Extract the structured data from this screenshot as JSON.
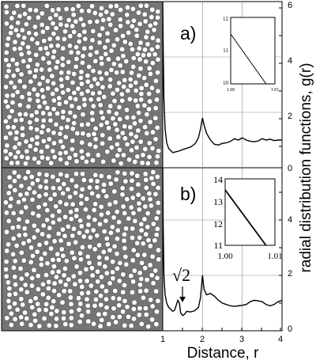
{
  "chart_data": [
    {
      "type": "line",
      "panel": "a)",
      "xlim": [
        1,
        4
      ],
      "ylim": [
        0,
        6
      ],
      "x_ticks": [
        "1",
        "2",
        "3",
        "4"
      ],
      "y_ticks": [
        "0",
        "2",
        "4",
        "6"
      ],
      "series": [
        {
          "x": [
            1.0,
            1.01,
            1.03,
            1.06,
            1.1,
            1.15,
            1.25,
            1.4,
            1.55,
            1.7,
            1.8,
            1.85,
            1.9,
            1.95,
            2.0,
            2.04,
            2.1,
            2.2,
            2.3,
            2.4,
            2.5,
            2.6,
            2.7,
            2.8,
            2.9,
            3.0,
            3.1,
            3.2,
            3.3,
            3.4,
            3.5,
            3.6,
            3.7,
            3.8,
            3.9,
            4.0
          ],
          "y": [
            6.0,
            4.5,
            2.5,
            1.4,
            0.9,
            0.7,
            0.55,
            0.6,
            0.68,
            0.75,
            0.85,
            0.95,
            1.1,
            1.4,
            1.8,
            1.55,
            1.25,
            1.0,
            0.85,
            0.82,
            0.88,
            0.9,
            0.95,
            1.05,
            1.0,
            1.08,
            1.0,
            0.96,
            0.94,
            0.97,
            1.05,
            1.0,
            1.03,
            0.98,
            1.0,
            1.0
          ]
        }
      ],
      "inset": {
        "xlim": [
          1.0,
          1.01
        ],
        "ylim": [
          10,
          12
        ],
        "x_ticks": [
          "1.00",
          "1.01"
        ],
        "y_ticks": [
          "10",
          "11",
          "12"
        ],
        "x": [
          1.0,
          1.008
        ],
        "y": [
          11.5,
          10.0
        ]
      }
    },
    {
      "type": "line",
      "panel": "b)",
      "xlim": [
        1,
        4
      ],
      "ylim": [
        0,
        6
      ],
      "x_ticks": [
        "1",
        "2",
        "3",
        "4"
      ],
      "y_ticks": [
        "0",
        "2",
        "4"
      ],
      "annotation": "√2",
      "series": [
        {
          "x": [
            1.0,
            1.01,
            1.03,
            1.06,
            1.1,
            1.15,
            1.25,
            1.3,
            1.38,
            1.42,
            1.45,
            1.5,
            1.55,
            1.6,
            1.7,
            1.8,
            1.9,
            1.95,
            2.0,
            2.04,
            2.1,
            2.2,
            2.3,
            2.4,
            2.5,
            2.6,
            2.7,
            2.8,
            2.9,
            3.0,
            3.1,
            3.2,
            3.3,
            3.4,
            3.5,
            3.6,
            3.7,
            3.8,
            3.9,
            4.0
          ],
          "y": [
            6.0,
            4.0,
            2.0,
            1.3,
            1.0,
            0.85,
            0.7,
            0.75,
            1.1,
            1.0,
            0.65,
            0.55,
            0.6,
            0.7,
            0.68,
            0.72,
            0.85,
            1.2,
            2.0,
            1.5,
            1.3,
            1.35,
            1.25,
            1.1,
            1.0,
            0.95,
            0.9,
            0.88,
            0.9,
            0.92,
            0.95,
            1.05,
            1.1,
            1.08,
            1.05,
            0.95,
            0.9,
            0.95,
            1.05,
            1.1
          ]
        }
      ],
      "inset": {
        "xlim": [
          1.0,
          1.01
        ],
        "ylim": [
          11,
          14
        ],
        "x_ticks": [
          "1.00",
          "1.01"
        ],
        "y_ticks": [
          "11",
          "12",
          "13",
          "14"
        ],
        "x": [
          1.0,
          1.0082
        ],
        "y": [
          13.5,
          11.0
        ]
      }
    }
  ],
  "ylabel": "radial distribution functions, g(r)",
  "xlabel": "Distance, r"
}
